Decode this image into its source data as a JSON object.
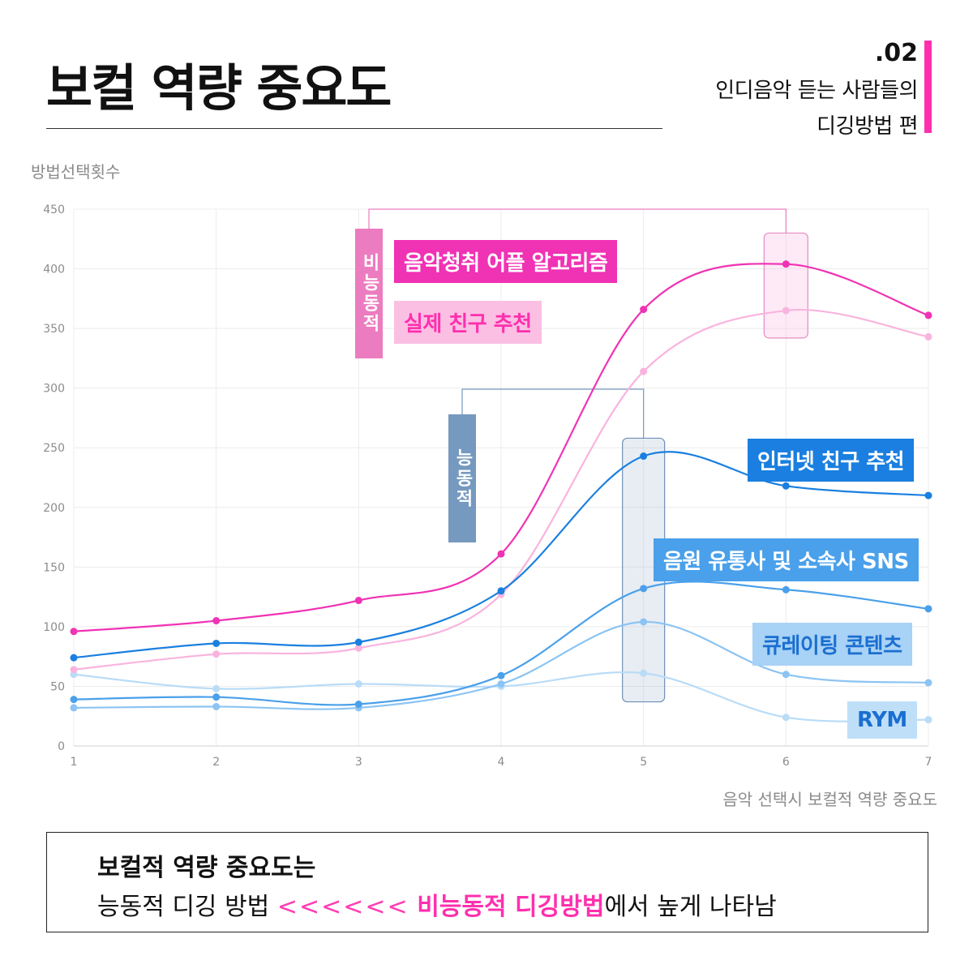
{
  "header": {
    "title": "보컬 역량 중요도",
    "series_number": ".02",
    "subtitle_line1": "인디음악 듣는 사람들의",
    "subtitle_line2": "디깅방법 편",
    "accent_color": "#ff2fae"
  },
  "chart_data": {
    "type": "line",
    "ylabel": "방법선택횟수",
    "xlabel": "음악 선택시 보컬적 역량 중요도",
    "x": [
      1,
      2,
      3,
      4,
      5,
      6,
      7
    ],
    "xlim": [
      1,
      7
    ],
    "ylim": [
      0,
      450
    ],
    "yticks": [
      0,
      50,
      100,
      150,
      200,
      250,
      300,
      350,
      400,
      450
    ],
    "grid": true,
    "series": [
      {
        "name": "음악청취 어플 알고리즘",
        "color": "#f032b4",
        "values": [
          96,
          105,
          122,
          161,
          366,
          404,
          361
        ]
      },
      {
        "name": "실제 친구 추천",
        "color": "#f9b4de",
        "values": [
          64,
          77,
          82,
          127,
          314,
          365,
          343
        ]
      },
      {
        "name": "인터넷 친구 추천",
        "color": "#1a7fe0",
        "values": [
          74,
          86,
          87,
          130,
          243,
          218,
          210
        ]
      },
      {
        "name": "음원 유통사 및 소속사 SNS",
        "color": "#4aa0ea",
        "values": [
          39,
          41,
          35,
          59,
          132,
          131,
          115
        ]
      },
      {
        "name": "큐레이팅 콘텐츠",
        "color": "#8cc4f3",
        "values": [
          32,
          33,
          32,
          52,
          104,
          60,
          53
        ]
      },
      {
        "name": "RYM",
        "color": "#b9dcf7",
        "values": [
          60,
          48,
          52,
          50,
          61,
          24,
          22
        ]
      }
    ],
    "groups": {
      "passive": "비능동적",
      "active": "능동적"
    }
  },
  "summary": {
    "line1": "보컬적 역량 중요도는",
    "line2_a": "능동적 디깅 방법 ",
    "line2_arrows": "<<<<<<",
    "line2_highlight": "비능동적 디깅방법",
    "line2_b": "에서 높게 나타남"
  }
}
